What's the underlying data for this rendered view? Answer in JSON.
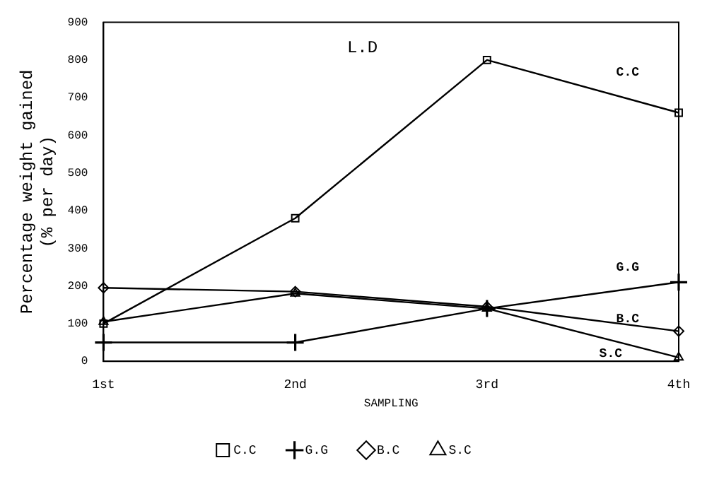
{
  "chart_data": {
    "type": "line",
    "title": "L.D",
    "xlabel": "SAMPLING",
    "ylabel": "Percentage weight gained\n(% per day)",
    "categories": [
      "1st",
      "2nd",
      "3rd",
      "4th"
    ],
    "series": [
      {
        "name": "C.C",
        "color": "#000000",
        "marker": "square",
        "values": [
          100,
          380,
          800,
          660
        ]
      },
      {
        "name": "G.G",
        "color": "#000000",
        "marker": "cross",
        "values": [
          50,
          50,
          140,
          210
        ]
      },
      {
        "name": "B.C",
        "color": "#000000",
        "marker": "diamond",
        "values": [
          195,
          185,
          145,
          80
        ]
      },
      {
        "name": "S.C",
        "color": "#000000",
        "marker": "triangle",
        "values": [
          105,
          180,
          140,
          10
        ]
      }
    ],
    "ylim": [
      0,
      900
    ],
    "yticks": [
      0,
      100,
      200,
      300,
      400,
      500,
      600,
      700,
      800,
      900
    ],
    "grid": false,
    "legend": "bottom",
    "line_style": "solid"
  }
}
